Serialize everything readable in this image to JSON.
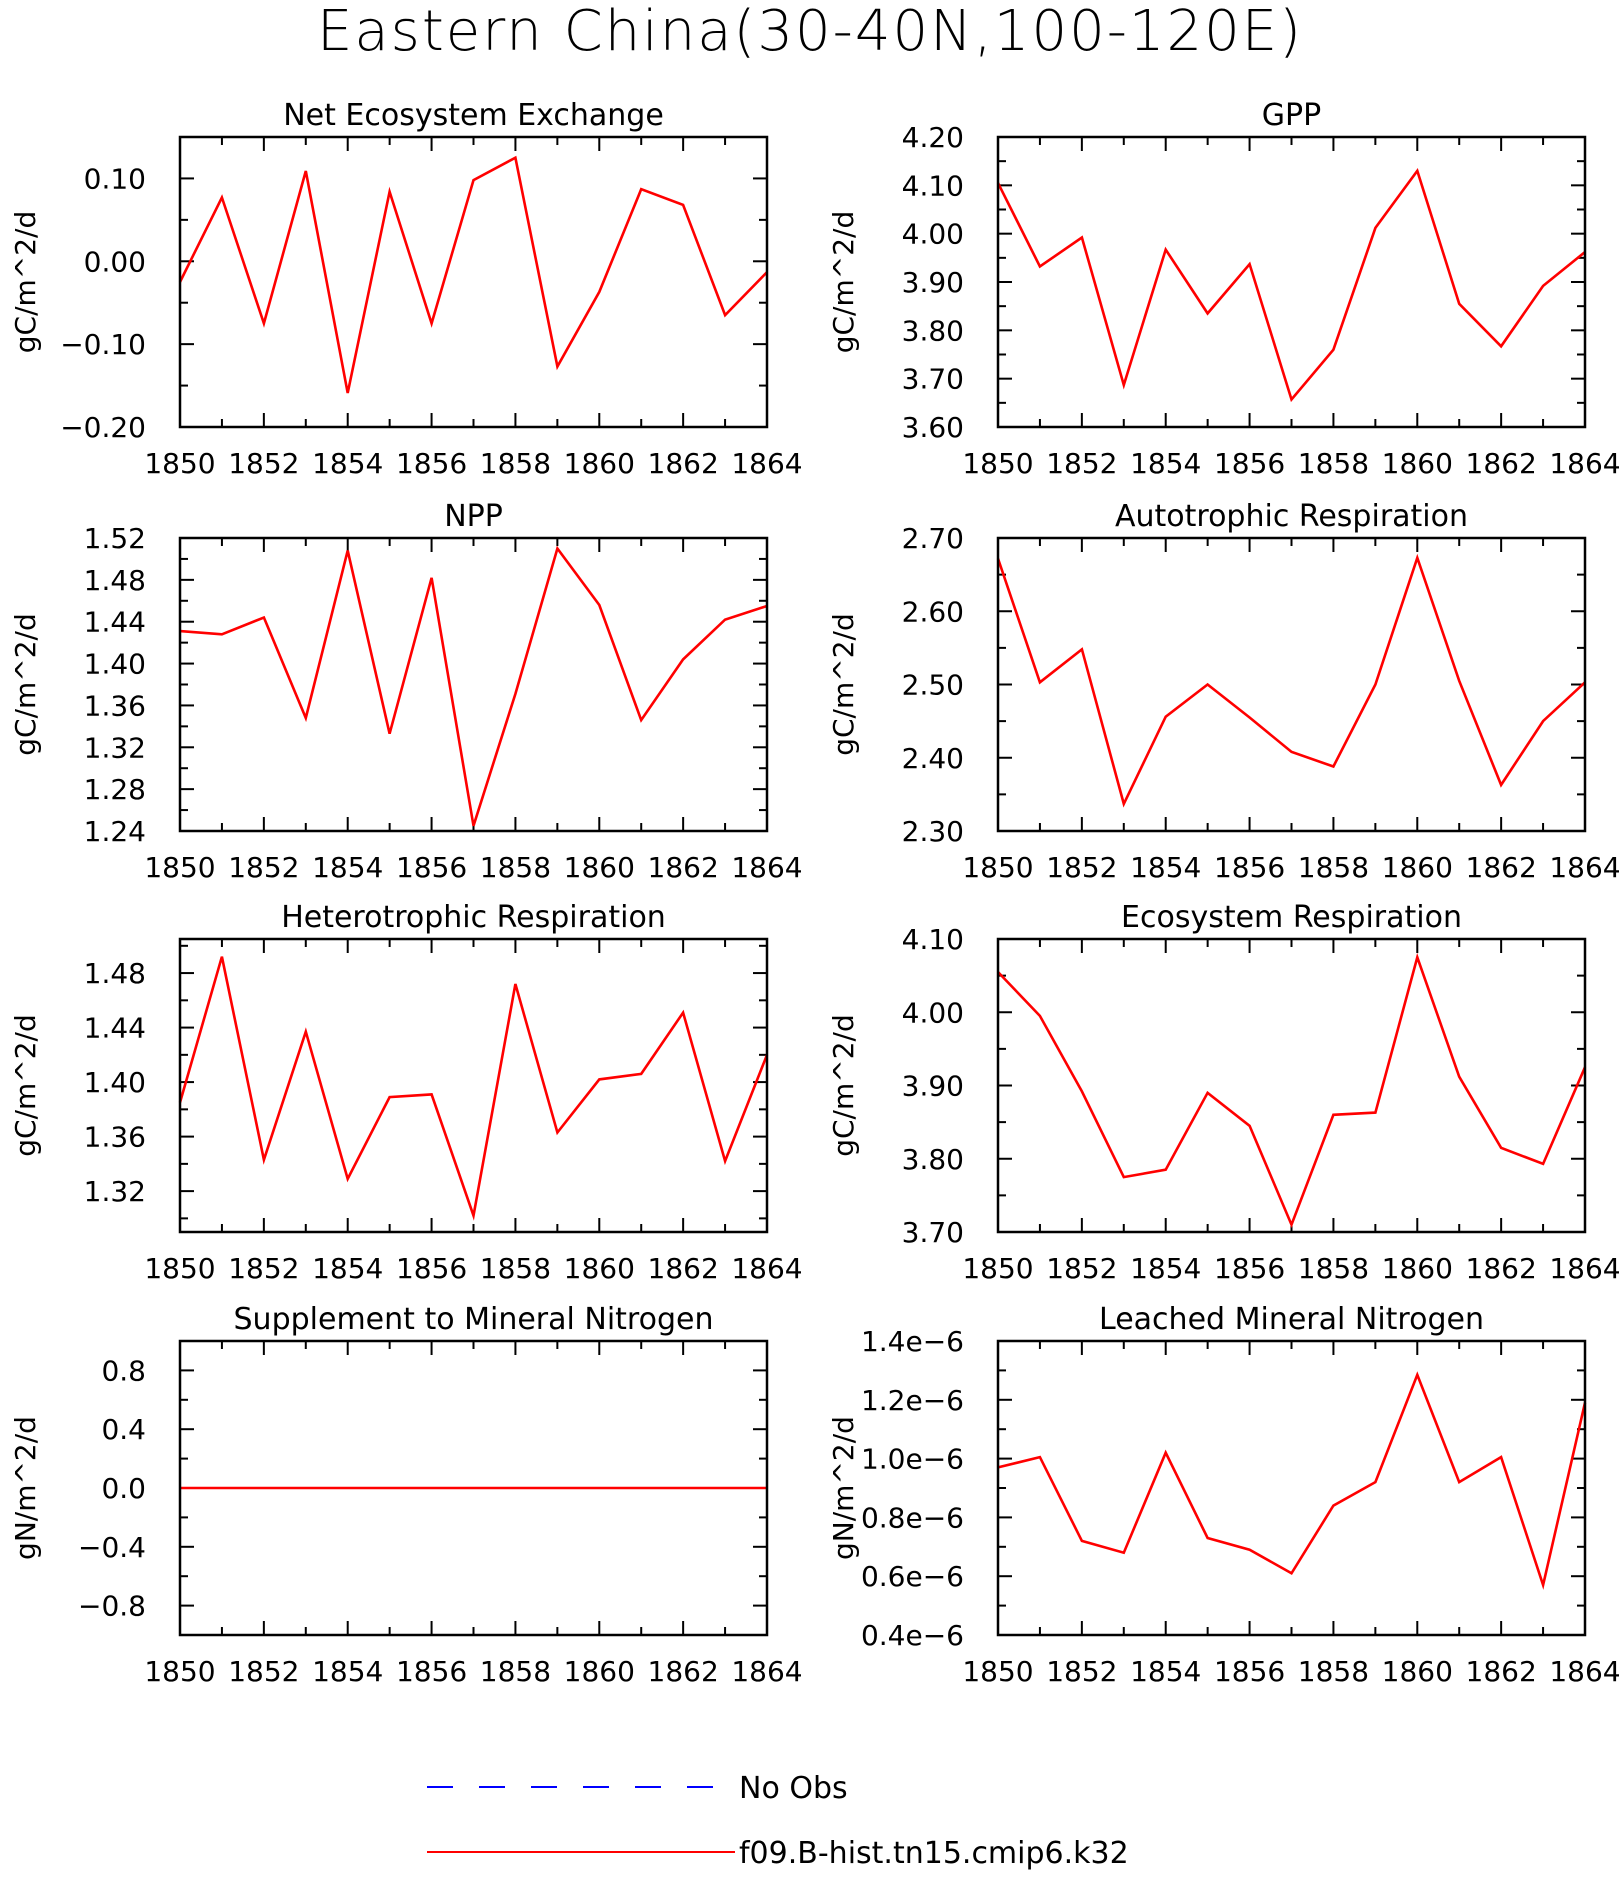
{
  "title": "Eastern China(30-40N,100-120E)",
  "colors": {
    "model": "#ff0000",
    "obs": "#0000ff",
    "axis": "#000000"
  },
  "legend": [
    {
      "label": "No Obs",
      "color": "#0000ff",
      "style": "dashed"
    },
    {
      "label": "f09.B-hist.tn15.cmip6.k32",
      "color": "#ff0000",
      "style": "solid"
    }
  ],
  "chart_data": [
    {
      "type": "line",
      "title": "Net Ecosystem Exchange",
      "ylabel": "gC/m^2/d",
      "x": [
        1850,
        1851,
        1852,
        1853,
        1854,
        1855,
        1856,
        1857,
        1858,
        1859,
        1860,
        1861,
        1862,
        1863,
        1864
      ],
      "xlim": [
        1850,
        1864
      ],
      "xticks": [
        "1850",
        "1852",
        "1854",
        "1856",
        "1858",
        "1860",
        "1862",
        "1864"
      ],
      "ylim": [
        -0.2,
        0.15
      ],
      "yticks": [
        -0.2,
        -0.1,
        0.0,
        0.1
      ],
      "ytick_labels": [
        "-0.20",
        "-0.10",
        "0.00",
        "0.10"
      ],
      "series": [
        {
          "values": [
            -0.025,
            0.077,
            -0.075,
            0.109,
            -0.159,
            0.084,
            -0.075,
            0.098,
            0.125,
            -0.127,
            -0.037,
            0.087,
            0.068,
            -0.065,
            -0.013
          ]
        }
      ]
    },
    {
      "type": "line",
      "title": "GPP",
      "ylabel": "gC/m^2/d",
      "x": [
        1850,
        1851,
        1852,
        1853,
        1854,
        1855,
        1856,
        1857,
        1858,
        1859,
        1860,
        1861,
        1862,
        1863,
        1864
      ],
      "xlim": [
        1850,
        1864
      ],
      "xticks": [
        "1850",
        "1852",
        "1854",
        "1856",
        "1858",
        "1860",
        "1862",
        "1864"
      ],
      "ylim": [
        3.6,
        4.2
      ],
      "yticks": [
        3.6,
        3.7,
        3.8,
        3.9,
        4.0,
        4.1,
        4.2
      ],
      "ytick_labels": [
        "3.60",
        "3.70",
        "3.80",
        "3.90",
        "4.00",
        "4.10",
        "4.20"
      ],
      "series": [
        {
          "values": [
            4.105,
            3.932,
            3.992,
            3.687,
            3.967,
            3.835,
            3.937,
            3.657,
            3.76,
            4.012,
            4.13,
            3.855,
            3.767,
            3.892,
            3.962
          ]
        }
      ]
    },
    {
      "type": "line",
      "title": "NPP",
      "ylabel": "gC/m^2/d",
      "x": [
        1850,
        1851,
        1852,
        1853,
        1854,
        1855,
        1856,
        1857,
        1858,
        1859,
        1860,
        1861,
        1862,
        1863,
        1864
      ],
      "xlim": [
        1850,
        1864
      ],
      "xticks": [
        "1850",
        "1852",
        "1854",
        "1856",
        "1858",
        "1860",
        "1862",
        "1864"
      ],
      "ylim": [
        1.24,
        1.52
      ],
      "yticks": [
        1.24,
        1.28,
        1.32,
        1.36,
        1.4,
        1.44,
        1.48,
        1.52
      ],
      "ytick_labels": [
        "1.24",
        "1.28",
        "1.32",
        "1.36",
        "1.40",
        "1.44",
        "1.48",
        "1.52"
      ],
      "series": [
        {
          "values": [
            1.431,
            1.428,
            1.444,
            1.348,
            1.508,
            1.333,
            1.482,
            1.245,
            1.371,
            1.51,
            1.456,
            1.346,
            1.404,
            1.442,
            1.455
          ]
        }
      ]
    },
    {
      "type": "line",
      "title": "Autotrophic Respiration",
      "ylabel": "gC/m^2/d",
      "x": [
        1850,
        1851,
        1852,
        1853,
        1854,
        1855,
        1856,
        1857,
        1858,
        1859,
        1860,
        1861,
        1862,
        1863,
        1864
      ],
      "xlim": [
        1850,
        1864
      ],
      "xticks": [
        "1850",
        "1852",
        "1854",
        "1856",
        "1858",
        "1860",
        "1862",
        "1864"
      ],
      "ylim": [
        2.3,
        2.7
      ],
      "yticks": [
        2.3,
        2.4,
        2.5,
        2.6,
        2.7
      ],
      "ytick_labels": [
        "2.30",
        "2.40",
        "2.50",
        "2.60",
        "2.70"
      ],
      "series": [
        {
          "values": [
            2.672,
            2.503,
            2.548,
            2.337,
            2.456,
            2.5,
            2.455,
            2.408,
            2.388,
            2.5,
            2.673,
            2.505,
            2.363,
            2.45,
            2.503
          ]
        }
      ]
    },
    {
      "type": "line",
      "title": "Heterotrophic Respiration",
      "ylabel": "gC/m^2/d",
      "x": [
        1850,
        1851,
        1852,
        1853,
        1854,
        1855,
        1856,
        1857,
        1858,
        1859,
        1860,
        1861,
        1862,
        1863,
        1864
      ],
      "xlim": [
        1850,
        1864
      ],
      "xticks": [
        "1850",
        "1852",
        "1854",
        "1856",
        "1858",
        "1860",
        "1862",
        "1864"
      ],
      "ylim": [
        1.29,
        1.505
      ],
      "yticks": [
        1.32,
        1.36,
        1.4,
        1.44,
        1.48
      ],
      "ytick_labels": [
        "1.32",
        "1.36",
        "1.40",
        "1.44",
        "1.48"
      ],
      "series": [
        {
          "values": [
            1.385,
            1.492,
            1.343,
            1.437,
            1.329,
            1.389,
            1.391,
            1.302,
            1.472,
            1.363,
            1.402,
            1.406,
            1.451,
            1.342,
            1.42
          ]
        }
      ]
    },
    {
      "type": "line",
      "title": "Ecosystem Respiration",
      "ylabel": "gC/m^2/d",
      "x": [
        1850,
        1851,
        1852,
        1853,
        1854,
        1855,
        1856,
        1857,
        1858,
        1859,
        1860,
        1861,
        1862,
        1863,
        1864
      ],
      "xlim": [
        1850,
        1864
      ],
      "xticks": [
        "1850",
        "1852",
        "1854",
        "1856",
        "1858",
        "1860",
        "1862",
        "1864"
      ],
      "ylim": [
        3.7,
        4.1
      ],
      "yticks": [
        3.7,
        3.8,
        3.9,
        4.0,
        4.1
      ],
      "ytick_labels": [
        "3.70",
        "3.80",
        "3.90",
        "4.00",
        "4.10"
      ],
      "series": [
        {
          "values": [
            4.055,
            3.995,
            3.892,
            3.775,
            3.785,
            3.89,
            3.845,
            3.71,
            3.86,
            3.863,
            4.075,
            3.912,
            3.815,
            3.793,
            3.925
          ]
        }
      ]
    },
    {
      "type": "line",
      "title": "Supplement to Mineral Nitrogen",
      "ylabel": "gN/m^2/d",
      "x": [
        1850,
        1851,
        1852,
        1853,
        1854,
        1855,
        1856,
        1857,
        1858,
        1859,
        1860,
        1861,
        1862,
        1863,
        1864
      ],
      "xlim": [
        1850,
        1864
      ],
      "xticks": [
        "1850",
        "1852",
        "1854",
        "1856",
        "1858",
        "1860",
        "1862",
        "1864"
      ],
      "ylim": [
        -1.0,
        1.0
      ],
      "yticks": [
        -0.8,
        -0.4,
        0.0,
        0.4,
        0.8
      ],
      "ytick_labels": [
        "-0.8",
        "-0.4",
        "0.0",
        "0.4",
        "0.8"
      ],
      "series": [
        {
          "values": [
            0,
            0,
            0,
            0,
            0,
            0,
            0,
            0,
            0,
            0,
            0,
            0,
            0,
            0,
            0
          ]
        }
      ]
    },
    {
      "type": "line",
      "title": "Leached Mineral Nitrogen",
      "ylabel": "gN/m^2/d",
      "x": [
        1850,
        1851,
        1852,
        1853,
        1854,
        1855,
        1856,
        1857,
        1858,
        1859,
        1860,
        1861,
        1862,
        1863,
        1864
      ],
      "xlim": [
        1850,
        1864
      ],
      "xticks": [
        "1850",
        "1852",
        "1854",
        "1856",
        "1858",
        "1860",
        "1862",
        "1864"
      ],
      "ylim": [
        4e-07,
        1.4e-06
      ],
      "yticks": [
        4e-07,
        6e-07,
        8e-07,
        1e-06,
        1.2e-06,
        1.4e-06
      ],
      "ytick_labels": [
        "0.4e-6",
        "0.6e-6",
        "0.8e-6",
        "1.0e-6",
        "1.2e-6",
        "1.4e-6"
      ],
      "series": [
        {
          "values": [
            9.7e-07,
            1.005e-06,
            7.2e-07,
            6.8e-07,
            1.02e-06,
            7.3e-07,
            6.9e-07,
            6.1e-07,
            8.4e-07,
            9.2e-07,
            1.285e-06,
            9.2e-07,
            1.005e-06,
            5.7e-07,
            1.19e-06
          ]
        }
      ]
    }
  ]
}
